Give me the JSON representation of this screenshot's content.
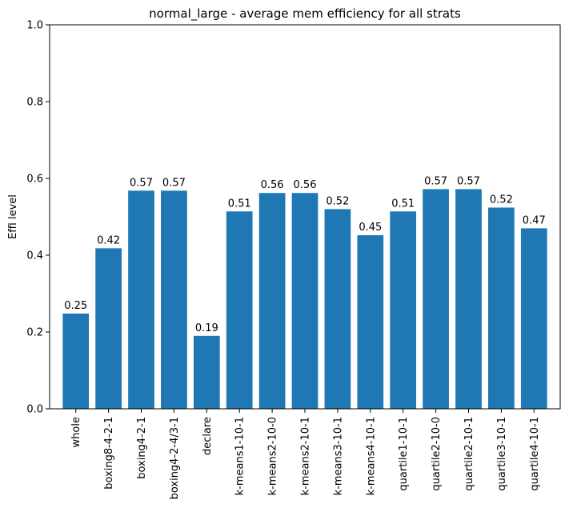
{
  "chart_data": {
    "type": "bar",
    "title": "normal_large - average mem efficiency for all strats",
    "xlabel": "",
    "ylabel": "Effi level",
    "ylim": [
      0,
      1
    ],
    "yticks": [
      "0.0",
      "0.2",
      "0.4",
      "0.6",
      "0.8",
      "1.0"
    ],
    "bar_color": "#1f77b4",
    "grid": false,
    "categories": [
      "whole",
      "boxing8-4-2-1",
      "boxing4-2-1",
      "boxing4-2-4/3-1",
      "declare",
      "k-means1-10-1",
      "k-means2-10-0",
      "k-means2-10-1",
      "k-means3-10-1",
      "k-means4-10-1",
      "quartile1-10-1",
      "quartile2-10-0",
      "quartile2-10-1",
      "quartile3-10-1",
      "quartile4-10-1"
    ],
    "values": [
      0.248,
      0.418,
      0.568,
      0.568,
      0.19,
      0.514,
      0.562,
      0.562,
      0.52,
      0.452,
      0.514,
      0.572,
      0.572,
      0.524,
      0.47
    ],
    "data_labels": [
      "0.25",
      "0.42",
      "0.57",
      "0.57",
      "0.19",
      "0.51",
      "0.56",
      "0.56",
      "0.52",
      "0.45",
      "0.51",
      "0.57",
      "0.57",
      "0.52",
      "0.47"
    ]
  }
}
